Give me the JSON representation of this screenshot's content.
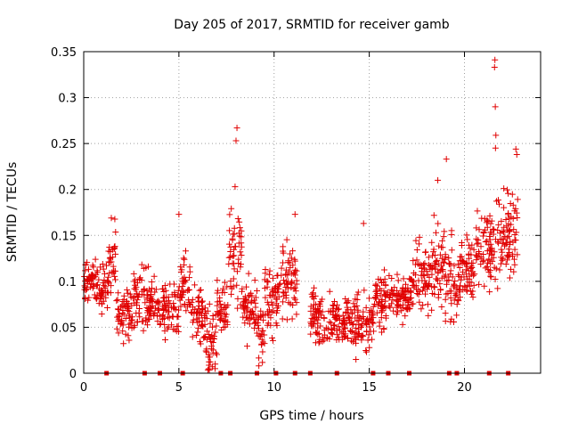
{
  "chart_data": {
    "type": "scatter",
    "title": "Day 205 of 2017, SRMTID for receiver gamb",
    "xlabel": "GPS time / hours",
    "ylabel": "SRMTID / TECUs",
    "xlim": [
      0,
      24
    ],
    "ylim": [
      0,
      0.35
    ],
    "grid": true,
    "legend": "none",
    "x_ticks": [
      0,
      5,
      10,
      15,
      20
    ],
    "x_tick_labels": [
      "0",
      "5",
      "10",
      "15",
      "20"
    ],
    "y_ticks": [
      0,
      0.05,
      0.1,
      0.15,
      0.2,
      0.25,
      0.3,
      0.35
    ],
    "y_tick_labels": [
      "0",
      "0.05",
      "0.1",
      "0.15",
      "0.2",
      "0.25",
      "0.3",
      "0.35"
    ],
    "marker": "+",
    "color": "#e00000",
    "bands": [
      {
        "x0": 0.0,
        "x1": 0.7,
        "mean": 0.1,
        "spread": 0.02
      },
      {
        "x0": 0.7,
        "x1": 1.3,
        "mean": 0.095,
        "spread": 0.02
      },
      {
        "x0": 1.3,
        "x1": 1.7,
        "mean": 0.12,
        "spread": 0.03
      },
      {
        "x0": 1.7,
        "x1": 2.6,
        "mean": 0.065,
        "spread": 0.02
      },
      {
        "x0": 2.6,
        "x1": 3.4,
        "mean": 0.085,
        "spread": 0.025
      },
      {
        "x0": 3.4,
        "x1": 4.2,
        "mean": 0.075,
        "spread": 0.02
      },
      {
        "x0": 4.2,
        "x1": 5.0,
        "mean": 0.07,
        "spread": 0.02
      },
      {
        "x0": 5.0,
        "x1": 5.6,
        "mean": 0.09,
        "spread": 0.03
      },
      {
        "x0": 5.6,
        "x1": 6.4,
        "mean": 0.065,
        "spread": 0.02
      },
      {
        "x0": 6.4,
        "x1": 7.0,
        "mean": 0.04,
        "spread": 0.025
      },
      {
        "x0": 7.0,
        "x1": 7.6,
        "mean": 0.075,
        "spread": 0.02
      },
      {
        "x0": 7.6,
        "x1": 8.3,
        "mean": 0.13,
        "spread": 0.035
      },
      {
        "x0": 8.3,
        "x1": 9.1,
        "mean": 0.07,
        "spread": 0.02
      },
      {
        "x0": 9.1,
        "x1": 9.5,
        "mean": 0.04,
        "spread": 0.025
      },
      {
        "x0": 9.5,
        "x1": 10.3,
        "mean": 0.08,
        "spread": 0.025
      },
      {
        "x0": 10.3,
        "x1": 11.2,
        "mean": 0.1,
        "spread": 0.03
      },
      {
        "x0": 11.9,
        "x1": 13.2,
        "mean": 0.06,
        "spread": 0.02
      },
      {
        "x0": 13.2,
        "x1": 14.2,
        "mean": 0.055,
        "spread": 0.02
      },
      {
        "x0": 14.2,
        "x1": 15.3,
        "mean": 0.055,
        "spread": 0.022
      },
      {
        "x0": 15.3,
        "x1": 16.3,
        "mean": 0.08,
        "spread": 0.02
      },
      {
        "x0": 16.3,
        "x1": 17.3,
        "mean": 0.085,
        "spread": 0.02
      },
      {
        "x0": 17.3,
        "x1": 18.2,
        "mean": 0.105,
        "spread": 0.025
      },
      {
        "x0": 18.2,
        "x1": 19.0,
        "mean": 0.12,
        "spread": 0.03
      },
      {
        "x0": 19.0,
        "x1": 19.8,
        "mean": 0.095,
        "spread": 0.03
      },
      {
        "x0": 19.8,
        "x1": 20.6,
        "mean": 0.115,
        "spread": 0.025
      },
      {
        "x0": 20.6,
        "x1": 21.6,
        "mean": 0.14,
        "spread": 0.03
      },
      {
        "x0": 21.6,
        "x1": 22.8,
        "mean": 0.15,
        "spread": 0.035
      }
    ],
    "outliers": [
      {
        "x": 8.05,
        "y": 0.267
      },
      {
        "x": 8.0,
        "y": 0.253
      },
      {
        "x": 7.95,
        "y": 0.203
      },
      {
        "x": 21.6,
        "y": 0.341
      },
      {
        "x": 21.58,
        "y": 0.333
      },
      {
        "x": 21.62,
        "y": 0.29
      },
      {
        "x": 21.65,
        "y": 0.259
      },
      {
        "x": 21.63,
        "y": 0.245
      },
      {
        "x": 19.05,
        "y": 0.233
      },
      {
        "x": 18.6,
        "y": 0.21
      },
      {
        "x": 22.7,
        "y": 0.244
      },
      {
        "x": 22.75,
        "y": 0.238
      },
      {
        "x": 5.0,
        "y": 0.173
      },
      {
        "x": 11.1,
        "y": 0.173
      },
      {
        "x": 14.7,
        "y": 0.163
      },
      {
        "x": 1.45,
        "y": 0.169
      },
      {
        "x": 6.9,
        "y": 0.005
      },
      {
        "x": 9.2,
        "y": 0.008
      },
      {
        "x": 14.3,
        "y": 0.015
      }
    ],
    "baseline_zero_x": [
      1.2,
      3.2,
      4.0,
      5.2,
      7.2,
      7.7,
      9.1,
      10.1,
      11.1,
      11.9,
      13.3,
      15.2,
      16.0,
      17.1,
      19.2,
      19.6,
      21.3,
      22.3
    ]
  }
}
